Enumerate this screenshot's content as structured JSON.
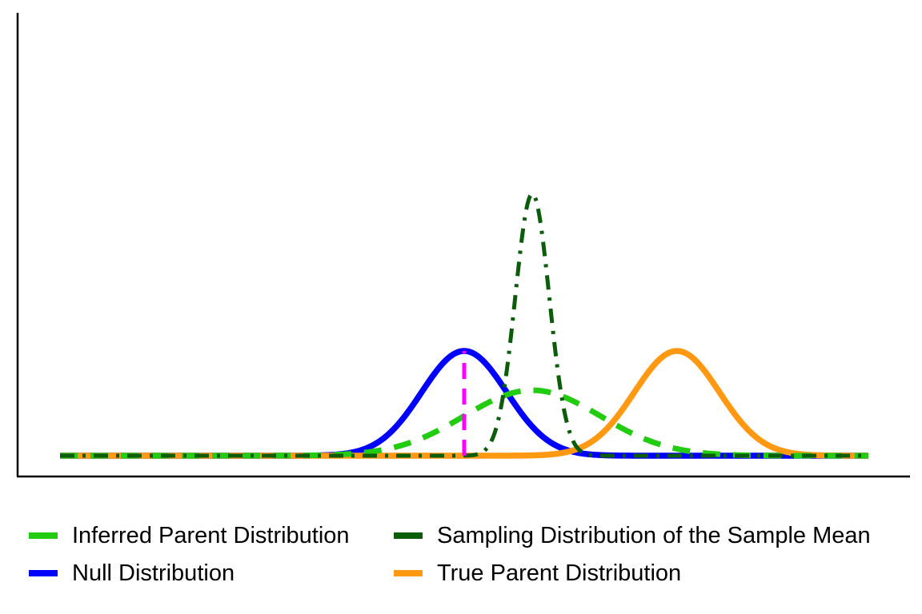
{
  "chart_data": {
    "type": "line",
    "title": "",
    "xlabel": "",
    "ylabel": "",
    "xlim": [
      -9.5,
      9.5
    ],
    "ylim": [
      0,
      1.62
    ],
    "grid": false,
    "axes_ticks": false,
    "legend_position": "bottom",
    "series": [
      {
        "name": "Inferred Parent Distribution",
        "distribution": "normal",
        "mean": 1.6,
        "sd": 1.6,
        "color": "#22cc11",
        "style": "dashed",
        "legend_order": 1
      },
      {
        "name": "Sampling Distribution of the Sample Mean",
        "distribution": "normal",
        "mean": 1.6,
        "sd": 0.4,
        "color": "#0b5c0b",
        "style": "dashdot",
        "legend_order": 2
      },
      {
        "name": "Null Distribution",
        "distribution": "normal",
        "mean": 0,
        "sd": 1,
        "color": "#0000ff",
        "style": "solid",
        "legend_order": 3
      },
      {
        "name": "True Parent Distribution",
        "distribution": "normal",
        "mean": 5,
        "sd": 1,
        "color": "#ff9912",
        "style": "solid",
        "legend_order": 4
      }
    ],
    "reference_lines": [
      {
        "type": "vertical",
        "x": 0,
        "y_from": 0,
        "y_to": 0.399,
        "color": "#ff00ff",
        "style": "dashed"
      }
    ]
  },
  "legend": {
    "items": [
      {
        "label": "Inferred Parent Distribution",
        "color": "#22cc11"
      },
      {
        "label": "Sampling Distribution of the Sample Mean",
        "color": "#0b5c0b"
      },
      {
        "label": "Null Distribution",
        "color": "#0000ff"
      },
      {
        "label": "True Parent Distribution",
        "color": "#ff9912"
      }
    ]
  }
}
